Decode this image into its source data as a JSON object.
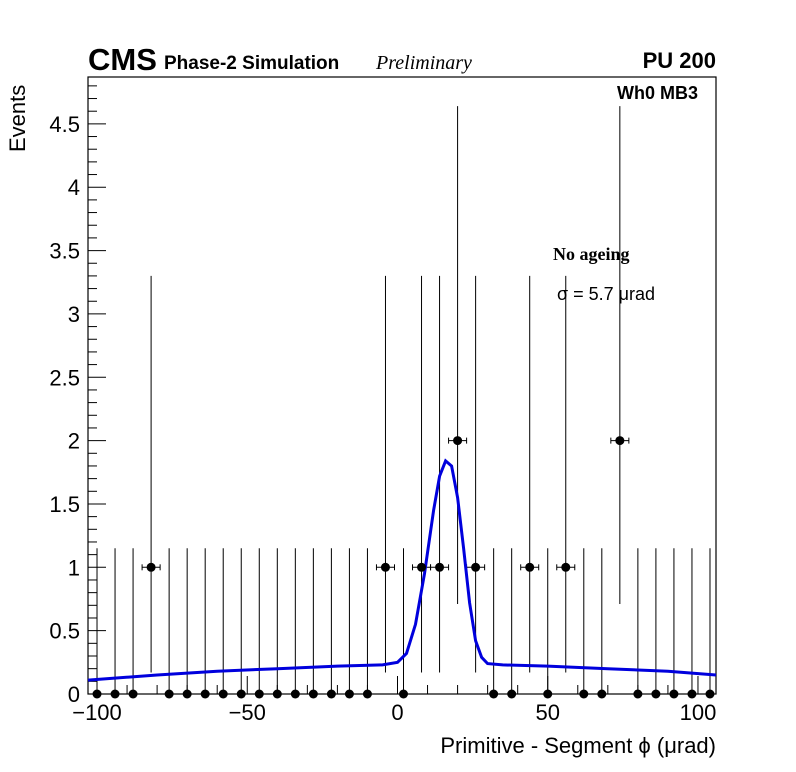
{
  "header": {
    "experiment": "CMS",
    "simulation": "Phase-2 Simulation",
    "status": "Preliminary",
    "pileup": "PU 200"
  },
  "region_label": "Wh0 MB3",
  "annotation": {
    "ageing": "No ageing",
    "resolution": "σ = 5.7 μrad"
  },
  "chart_data": {
    "type": "scatter",
    "title": "",
    "xlabel": "Primitive - Segment ϕ (μrad)",
    "ylabel": "Events",
    "xlim": [
      -103,
      106
    ],
    "ylim": [
      0,
      4.87
    ],
    "x_ticks": [
      -100,
      -50,
      0,
      50,
      100
    ],
    "x_tick_labels": [
      "−100",
      "−50",
      "0",
      "50",
      "100"
    ],
    "y_ticks": [
      0,
      0.5,
      1,
      1.5,
      2,
      2.5,
      3,
      3.5,
      4,
      4.5
    ],
    "y_tick_labels": [
      "0",
      "0.5",
      "1",
      "1.5",
      "2",
      "2.5",
      "3",
      "3.5",
      "4",
      "4.5"
    ],
    "bin_width": 6,
    "series": [
      {
        "kind": "points",
        "color": "#000000",
        "x": [
          -100,
          -94,
          -88,
          -82,
          -76,
          -70,
          -64,
          -58,
          -52,
          -46,
          -40,
          -34,
          -28,
          -22,
          -16,
          -10,
          -4,
          2,
          8,
          14,
          20,
          26,
          32,
          38,
          44,
          50,
          56,
          62,
          68,
          74,
          80,
          86,
          92,
          98,
          104
        ],
        "y": [
          0,
          0,
          0,
          1,
          0,
          0,
          0,
          0,
          0,
          0,
          0,
          0,
          0,
          0,
          0,
          0,
          1,
          0,
          1,
          1,
          2,
          1,
          0,
          0,
          1,
          0,
          1,
          0,
          0,
          2,
          0,
          0,
          0,
          0,
          0
        ]
      },
      {
        "kind": "fit",
        "color": "#0000dd",
        "x": [
          -103,
          -80,
          -60,
          -40,
          -20,
          -5,
          0,
          3,
          6,
          9,
          12,
          14,
          16,
          18,
          20,
          22,
          24,
          26,
          28,
          30,
          35,
          50,
          70,
          90,
          106
        ],
        "y": [
          0.11,
          0.15,
          0.18,
          0.2,
          0.22,
          0.23,
          0.25,
          0.32,
          0.55,
          0.95,
          1.45,
          1.72,
          1.84,
          1.8,
          1.55,
          1.15,
          0.72,
          0.42,
          0.29,
          0.24,
          0.23,
          0.22,
          0.2,
          0.18,
          0.15
        ]
      }
    ],
    "grid": false,
    "legend": "none"
  }
}
